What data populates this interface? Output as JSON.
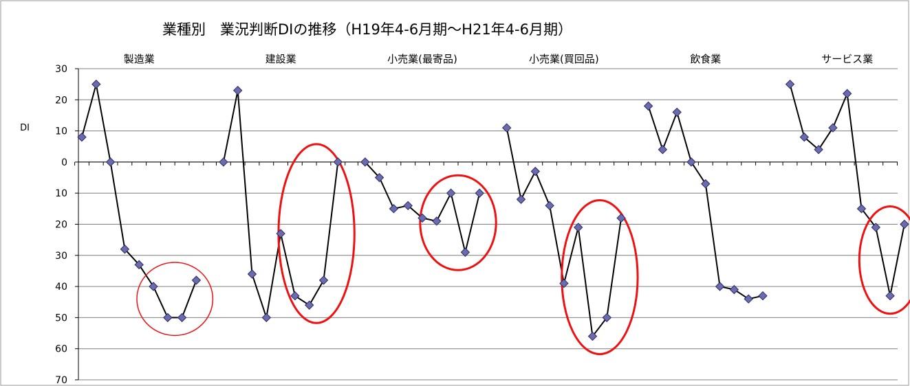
{
  "chart_data": {
    "type": "line",
    "title": "業種別　業況判断DIの推移（H19年4-6月期～H21年4-6月期）",
    "ylabel": "DI",
    "xlabel": "",
    "ylim": [
      -70,
      30
    ],
    "yticks": [
      30,
      20,
      10,
      0,
      -10,
      -20,
      -30,
      -40,
      -50,
      -60,
      -70
    ],
    "ytick_labels": [
      "30",
      "20",
      "10",
      "0",
      "10",
      "20",
      "30",
      "40",
      "50",
      "60",
      "70"
    ],
    "grid": true,
    "series_color": "#000000",
    "marker_color": "#6b6bb0",
    "circle_color": "#ee1111",
    "groups": [
      {
        "label": "製造業",
        "values": [
          8,
          25,
          0,
          -28,
          -33,
          -40,
          -50,
          -50,
          -38
        ],
        "circled_from": 5,
        "circled_to": 8
      },
      {
        "label": "建設業",
        "values": [
          0,
          23,
          -36,
          -50,
          -23,
          -43,
          -46,
          -38,
          0
        ],
        "circled_from": 5,
        "circled_to": 8
      },
      {
        "label": "小売業(最寄品)",
        "values": [
          0,
          -5,
          -15,
          -14,
          -18,
          -19,
          -10,
          -29,
          -10
        ],
        "circled_from": 5,
        "circled_to": 8
      },
      {
        "label": "小売業(買回品)",
        "values": [
          11,
          -12,
          -3,
          -14,
          -39,
          -21,
          -56,
          -50,
          -18
        ],
        "circled_from": 5,
        "circled_to": 8
      },
      {
        "label": "飲食業",
        "values": [
          18,
          4,
          16,
          0,
          -7,
          -40,
          -41,
          -44,
          -43
        ],
        "circled_from": null,
        "circled_to": null
      },
      {
        "label": "サービス業",
        "values": [
          25,
          8,
          4,
          11,
          22,
          -15,
          -21,
          -43,
          -20
        ],
        "circled_from": 6,
        "circled_to": 8
      }
    ]
  }
}
